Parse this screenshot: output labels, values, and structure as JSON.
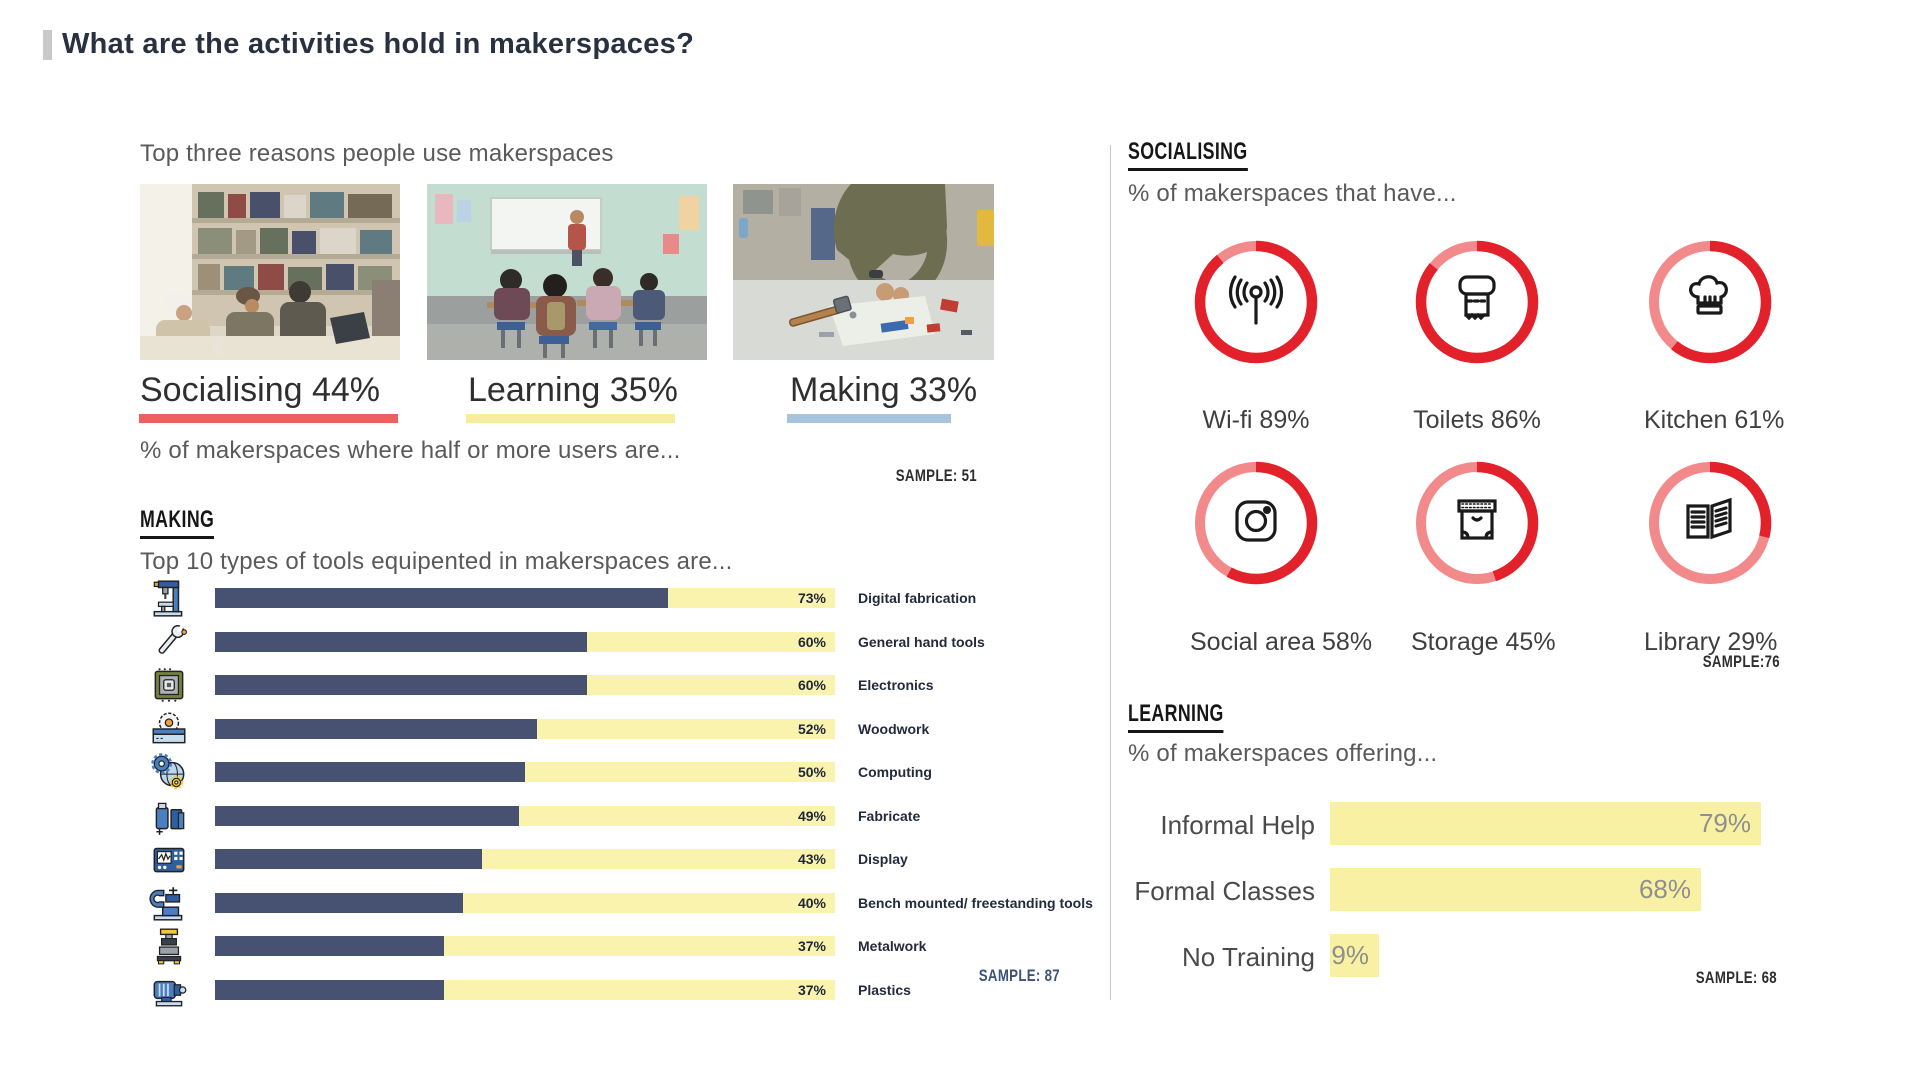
{
  "page": {
    "title": "What are the activities hold in makerspaces?"
  },
  "reasons": {
    "subtitle": "Top three reasons people use makerspaces",
    "caption": "% of makerspaces where half or more users are...",
    "sample": "SAMPLE: 51",
    "items": [
      {
        "label": "Socialising 44%",
        "pct": 44,
        "underline_color": "#f15e5e",
        "photo": "library-social-photo"
      },
      {
        "label": "Learning 35%",
        "pct": 35,
        "underline_color": "#f6ed9e",
        "photo": "classroom-photo"
      },
      {
        "label": "Making 33%",
        "pct": 33,
        "underline_color": "#a6c4dc",
        "photo": "workbench-photo"
      }
    ]
  },
  "making": {
    "header": "MAKING",
    "subtitle": "Top 10 types of tools equipented in makerspaces are...",
    "sample": "SAMPLE: 87",
    "colors": {
      "fill": "#475273",
      "track": "#faf3ae"
    },
    "rows": [
      {
        "icon": "drill-press-icon",
        "pct": 73,
        "pct_label": "73%",
        "label": "Digital fabrication"
      },
      {
        "icon": "wrench-icon",
        "pct": 60,
        "pct_label": "60%",
        "label": "General hand tools"
      },
      {
        "icon": "circuit-chip-icon",
        "pct": 60,
        "pct_label": "60%",
        "label": "Electronics"
      },
      {
        "icon": "table-saw-icon",
        "pct": 52,
        "pct_label": "52%",
        "label": "Woodwork"
      },
      {
        "icon": "gears-globe-icon",
        "pct": 50,
        "pct_label": "50%",
        "label": "Computing"
      },
      {
        "icon": "canisters-icon",
        "pct": 49,
        "pct_label": "49%",
        "label": "Fabricate"
      },
      {
        "icon": "oscilloscope-icon",
        "pct": 43,
        "pct_label": "43%",
        "label": "Display"
      },
      {
        "icon": "bench-vise-icon",
        "pct": 40,
        "pct_label": "40%",
        "label": "Bench mounted/ freestanding tools"
      },
      {
        "icon": "press-machine-icon",
        "pct": 37,
        "pct_label": "37%",
        "label": "Metalwork"
      },
      {
        "icon": "motor-icon",
        "pct": 37,
        "pct_label": "37%",
        "label": "Plastics"
      }
    ]
  },
  "socialising": {
    "header": "SOCIALISING",
    "subtitle": "% of makerspaces that have...",
    "sample": "SAMPLE:76",
    "ring_colors": {
      "filled": "#e2212a",
      "rest": "#f28a8b"
    },
    "items": [
      {
        "icon": "wifi-antenna-icon",
        "pct": 89,
        "label": "Wi-fi 89%"
      },
      {
        "icon": "toilet-paper-icon",
        "pct": 86,
        "label": "Toilets 86%"
      },
      {
        "icon": "chef-hat-icon",
        "pct": 61,
        "label": "Kitchen 61%"
      },
      {
        "icon": "camera-icon",
        "pct": 58,
        "label": "Social area 58%"
      },
      {
        "icon": "storage-box-icon",
        "pct": 45,
        "label": "Storage 45%"
      },
      {
        "icon": "open-book-icon",
        "pct": 29,
        "label": "Library 29%"
      }
    ]
  },
  "learning": {
    "header": "LEARNING",
    "subtitle": "% of makerspaces offering...",
    "sample": "SAMPLE: 68",
    "bar_color": "#f8f0a2",
    "rows": [
      {
        "label": "Informal Help",
        "pct": 79,
        "pct_label": "79%"
      },
      {
        "label": "Formal Classes",
        "pct": 68,
        "pct_label": "68%"
      },
      {
        "label": "No Training",
        "pct": 9,
        "pct_label": "9%"
      }
    ]
  },
  "chart_data": [
    {
      "type": "bar",
      "title": "Top three reasons people use makerspaces",
      "categories": [
        "Socialising",
        "Learning",
        "Making"
      ],
      "values": [
        44,
        35,
        33
      ],
      "note": "% of makerspaces where half or more users are...",
      "sample": 51
    },
    {
      "type": "bar",
      "title": "Top 10 types of tools equipented in makerspaces are...",
      "categories": [
        "Digital fabrication",
        "General hand tools",
        "Electronics",
        "Woodwork",
        "Computing",
        "Fabricate",
        "Display",
        "Bench mounted/ freestanding tools",
        "Metalwork",
        "Plastics"
      ],
      "values": [
        73,
        60,
        60,
        52,
        50,
        49,
        43,
        40,
        37,
        37
      ],
      "xlim": [
        0,
        100
      ],
      "sample": 87,
      "bar_color": "#475273",
      "track_color": "#faf3ae"
    },
    {
      "type": "pie",
      "title": "% of makerspaces that have...",
      "categories": [
        "Wi-fi",
        "Toilets",
        "Kitchen",
        "Social area",
        "Storage",
        "Library"
      ],
      "values": [
        89,
        86,
        61,
        58,
        45,
        29
      ],
      "sample": 76,
      "style": "donut-ring-set",
      "colors": [
        "#e2212a",
        "#f28a8b"
      ]
    },
    {
      "type": "bar",
      "title": "% of makerspaces offering...",
      "categories": [
        "Informal Help",
        "Formal Classes",
        "No Training"
      ],
      "values": [
        79,
        68,
        9
      ],
      "xlim": [
        0,
        100
      ],
      "sample": 68,
      "bar_color": "#f8f0a2"
    }
  ]
}
